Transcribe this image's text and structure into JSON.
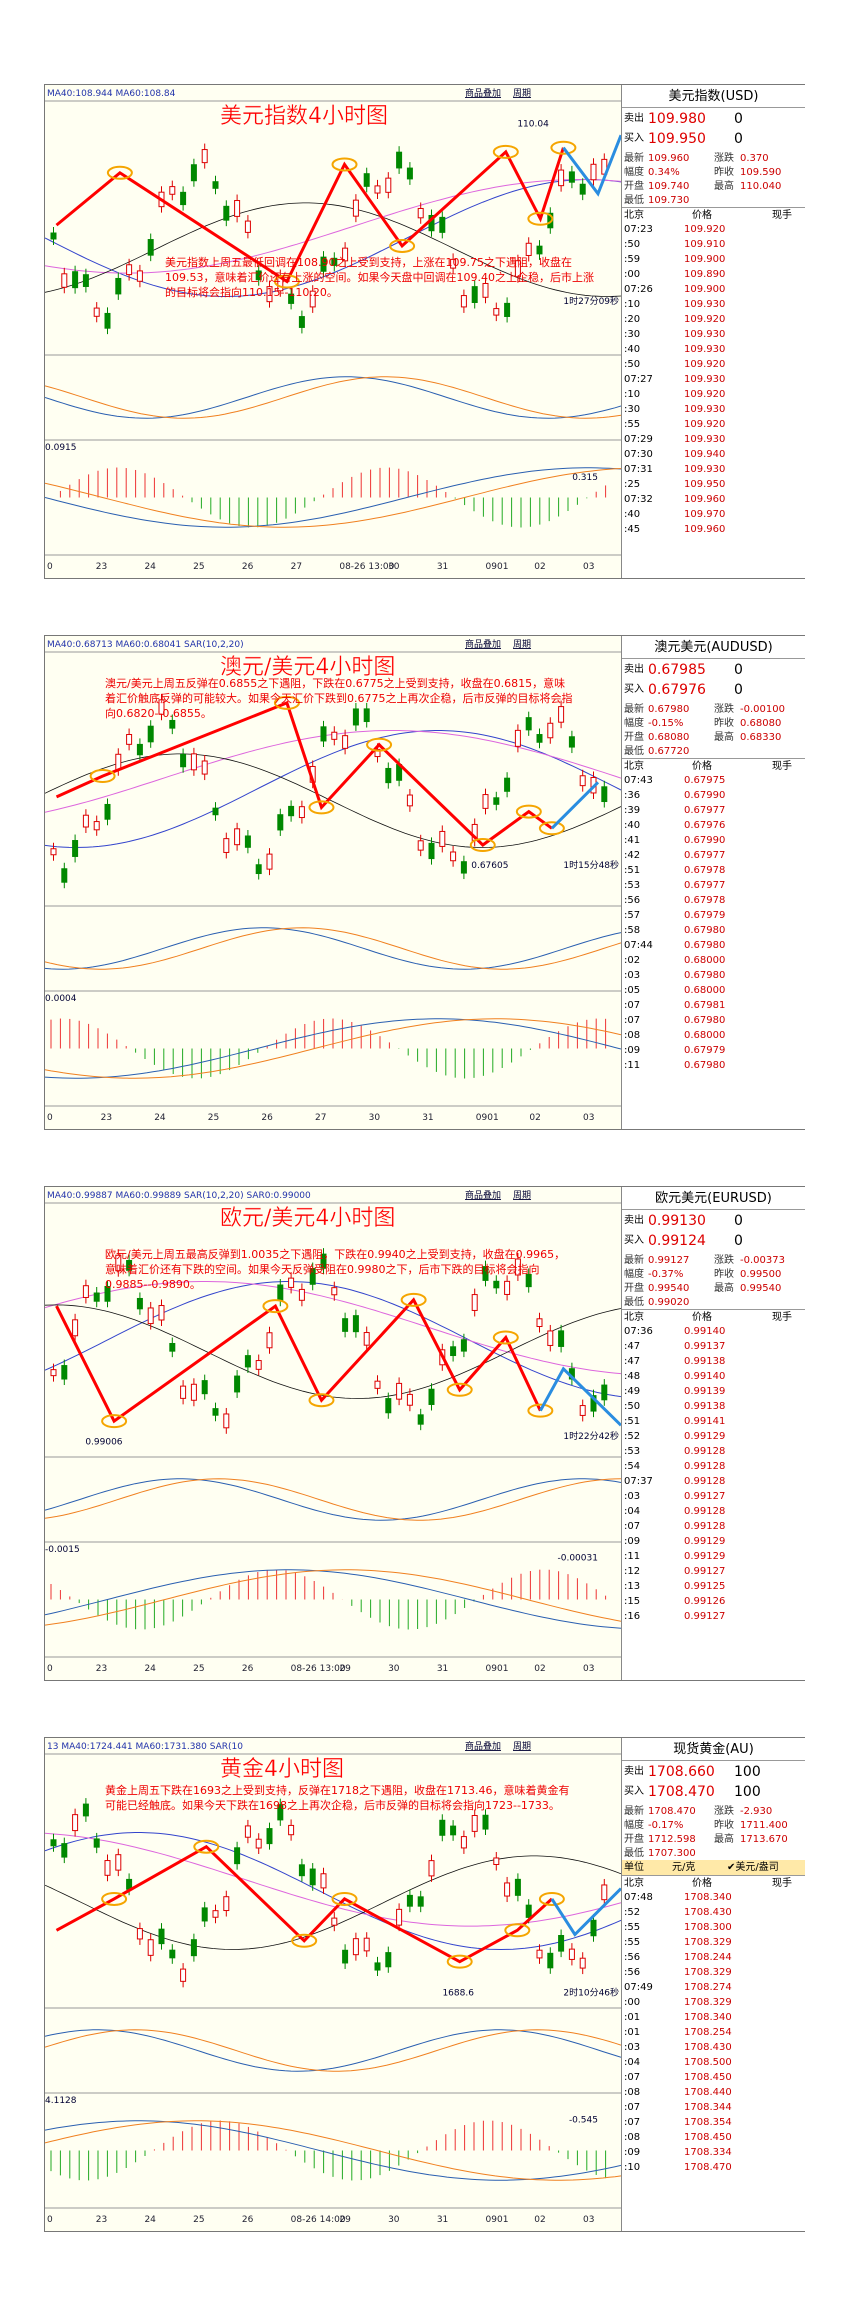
{
  "panels": [
    {
      "title": "美元指数4小时图",
      "indicator": "MA40:108.944 MA60:108.84",
      "buttons": [
        "商品叠加",
        "周期"
      ],
      "annotation": "美元指数上周五最低回调在108.90之上受到支持，上涨在109.75之下遇阻，收盘在109.53，意味着汇价还有上涨的空间。如果今天盘中回调在109.40之上企稳，后市上涨的目标将会指向110.15--110.20。",
      "chart_labels": [
        "110.04",
        "1时27分09秒",
        "0.0915",
        "0.315"
      ],
      "x_labels": [
        "0",
        "23",
        "24",
        "25",
        "26",
        "27",
        "08-26 13:00",
        "30",
        "31",
        "0901",
        "02",
        "03"
      ],
      "side": {
        "name": "美元指数(USD)",
        "sell": [
          "卖出",
          "109.980",
          "0"
        ],
        "buy": [
          "买入",
          "109.950",
          "0"
        ],
        "stats": [
          [
            "最新",
            "109.960",
            "涨跌",
            "0.370"
          ],
          [
            "幅度",
            "0.34%",
            "昨收",
            "109.590"
          ],
          [
            "开盘",
            "109.740",
            "最高",
            "110.040"
          ],
          [
            "最低",
            "109.730"
          ]
        ],
        "header": [
          "北京",
          "价格",
          "现手"
        ],
        "ticks": [
          [
            "07:23",
            "109.920"
          ],
          [
            ":50",
            "109.910"
          ],
          [
            ":59",
            "109.900"
          ],
          [
            ":00",
            "109.890"
          ],
          [
            "07:26",
            "109.900"
          ],
          [
            ":10",
            "109.930"
          ],
          [
            ":20",
            "109.920"
          ],
          [
            ":30",
            "109.930"
          ],
          [
            ":40",
            "109.930"
          ],
          [
            ":50",
            "109.920"
          ],
          [
            "07:27",
            "109.930"
          ],
          [
            ":10",
            "109.920"
          ],
          [
            ":30",
            "109.930"
          ],
          [
            ":55",
            "109.920"
          ],
          [
            "07:29",
            "109.930"
          ],
          [
            "07:30",
            "109.940"
          ],
          [
            "07:31",
            "109.930"
          ],
          [
            ":25",
            "109.950"
          ],
          [
            "07:32",
            "109.960"
          ],
          [
            ":40",
            "109.970"
          ],
          [
            ":45",
            "109.960"
          ]
        ]
      }
    },
    {
      "title": "澳元/美元4小时图",
      "indicator": "MA40:0.68713 MA60:0.68041 SAR(10,2,20)",
      "buttons": [
        "商品叠加",
        "周期"
      ],
      "annotation": "澳元/美元上周五反弹在0.6855之下遇阻，下跌在0.6775之上受到支持，收盘在0.6815，意味着汇价触底反弹的可能较大。如果今天汇价下跌到0.6775之上再次企稳，后市反弹的目标将会指向0.6820--0.6855。",
      "chart_labels": [
        "0.67605",
        "1时15分48秒",
        "0.0004"
      ],
      "x_labels": [
        "0",
        "23",
        "24",
        "25",
        "26",
        "27",
        "30",
        "31",
        "0901",
        "02",
        "03"
      ],
      "side": {
        "name": "澳元美元(AUDUSD)",
        "sell": [
          "卖出",
          "0.67985",
          "0"
        ],
        "buy": [
          "买入",
          "0.67976",
          "0"
        ],
        "stats": [
          [
            "最新",
            "0.67980",
            "涨跌",
            "-0.00100"
          ],
          [
            "幅度",
            "-0.15%",
            "昨收",
            "0.68080"
          ],
          [
            "开盘",
            "0.68080",
            "最高",
            "0.68330"
          ],
          [
            "最低",
            "0.67720"
          ]
        ],
        "header": [
          "北京",
          "价格",
          "现手"
        ],
        "ticks": [
          [
            "07:43",
            "0.67975"
          ],
          [
            ":36",
            "0.67990"
          ],
          [
            ":39",
            "0.67977"
          ],
          [
            ":40",
            "0.67976"
          ],
          [
            ":41",
            "0.67990"
          ],
          [
            ":42",
            "0.67977"
          ],
          [
            ":51",
            "0.67978"
          ],
          [
            ":53",
            "0.67977"
          ],
          [
            ":56",
            "0.67978"
          ],
          [
            ":57",
            "0.67979"
          ],
          [
            ":58",
            "0.67980"
          ],
          [
            "07:44",
            "0.67980"
          ],
          [
            ":02",
            "0.68000"
          ],
          [
            ":03",
            "0.67980"
          ],
          [
            ":05",
            "0.68000"
          ],
          [
            ":07",
            "0.67981"
          ],
          [
            ":07",
            "0.67980"
          ],
          [
            ":08",
            "0.68000"
          ],
          [
            ":09",
            "0.67979"
          ],
          [
            ":11",
            "0.67980"
          ]
        ]
      }
    },
    {
      "title": "欧元/美元4小时图",
      "indicator": "MA40:0.99887 MA60:0.99889 SAR(10,2,20) SAR0:0.99000",
      "buttons": [
        "商品叠加",
        "周期"
      ],
      "annotation": "欧元/美元上周五最高反弹到1.0035之下遇阻，下跌在0.9940之上受到支持，收盘在0.9965，意味着汇价还有下跌的空间。如果今天反弹受阻在0.9980之下，后市下跌的目标将会指向0.9885--0.9890。",
      "chart_labels": [
        "0.99006",
        "1时22分42秒",
        "-0.0015",
        "-0.00031"
      ],
      "x_labels": [
        "0",
        "23",
        "24",
        "25",
        "26",
        "08-26 13:00",
        "29",
        "30",
        "31",
        "0901",
        "02",
        "03"
      ],
      "side": {
        "name": "欧元美元(EURUSD)",
        "sell": [
          "卖出",
          "0.99130",
          "0"
        ],
        "buy": [
          "买入",
          "0.99124",
          "0"
        ],
        "stats": [
          [
            "最新",
            "0.99127",
            "涨跌",
            "-0.00373"
          ],
          [
            "幅度",
            "-0.37%",
            "昨收",
            "0.99500"
          ],
          [
            "开盘",
            "0.99540",
            "最高",
            "0.99540"
          ],
          [
            "最低",
            "0.99020"
          ]
        ],
        "header": [
          "北京",
          "价格",
          "现手"
        ],
        "ticks": [
          [
            "07:36",
            "0.99140"
          ],
          [
            ":47",
            "0.99137"
          ],
          [
            ":47",
            "0.99138"
          ],
          [
            ":48",
            "0.99140"
          ],
          [
            ":49",
            "0.99139"
          ],
          [
            ":50",
            "0.99138"
          ],
          [
            ":51",
            "0.99141"
          ],
          [
            ":52",
            "0.99129"
          ],
          [
            ":53",
            "0.99128"
          ],
          [
            ":54",
            "0.99128"
          ],
          [
            "07:37",
            "0.99128"
          ],
          [
            ":03",
            "0.99127"
          ],
          [
            ":04",
            "0.99128"
          ],
          [
            ":07",
            "0.99128"
          ],
          [
            ":09",
            "0.99129"
          ],
          [
            ":11",
            "0.99129"
          ],
          [
            ":12",
            "0.99127"
          ],
          [
            ":13",
            "0.99125"
          ],
          [
            ":15",
            "0.99126"
          ],
          [
            ":16",
            "0.99127"
          ]
        ]
      }
    },
    {
      "title": "黄金4小时图",
      "indicator": "13 MA40:1724.441 MA60:1731.380 SAR(10",
      "buttons": [
        "商品叠加",
        "周期"
      ],
      "annotation": "黄金上周五下跌在1693之上受到支持，反弹在1718之下遇阻，收盘在1713.46，意味着黄金有可能已经触底。如果今天下跌在1698之上再次企稳，后市反弹的目标将会指向1723--1733。",
      "chart_labels": [
        "1688.6",
        "2时10分46秒",
        "4.1128",
        "-0.545"
      ],
      "x_labels": [
        "0",
        "23",
        "24",
        "25",
        "26",
        "08-26 14:00",
        "29",
        "30",
        "31",
        "0901",
        "02",
        "03"
      ],
      "side": {
        "name": "现货黄金(AU)",
        "sell": [
          "卖出",
          "1708.660",
          "100"
        ],
        "buy": [
          "买入",
          "1708.470",
          "100"
        ],
        "stats": [
          [
            "最新",
            "1708.470",
            "涨跌",
            "-2.930"
          ],
          [
            "幅度",
            "-0.17%",
            "昨收",
            "1711.400"
          ],
          [
            "开盘",
            "1712.598",
            "最高",
            "1713.670"
          ],
          [
            "最低",
            "1707.300"
          ]
        ],
        "unit": [
          "单位",
          "元/克",
          "✔美元/盎司"
        ],
        "header": [
          "北京",
          "价格",
          "现手"
        ],
        "ticks": [
          [
            "07:48",
            "1708.340"
          ],
          [
            ":52",
            "1708.430"
          ],
          [
            ":55",
            "1708.300"
          ],
          [
            ":55",
            "1708.329"
          ],
          [
            ":56",
            "1708.244"
          ],
          [
            ":56",
            "1708.329"
          ],
          [
            "07:49",
            "1708.274"
          ],
          [
            ":00",
            "1708.329"
          ],
          [
            ":01",
            "1708.340"
          ],
          [
            ":01",
            "1708.254"
          ],
          [
            ":03",
            "1708.430"
          ],
          [
            ":04",
            "1708.500"
          ],
          [
            ":07",
            "1708.450"
          ],
          [
            ":08",
            "1708.440"
          ],
          [
            ":07",
            "1708.344"
          ],
          [
            ":07",
            "1708.354"
          ],
          [
            ":08",
            "1708.450"
          ],
          [
            ":09",
            "1708.334"
          ],
          [
            ":10",
            "1708.470"
          ]
        ]
      }
    }
  ]
}
